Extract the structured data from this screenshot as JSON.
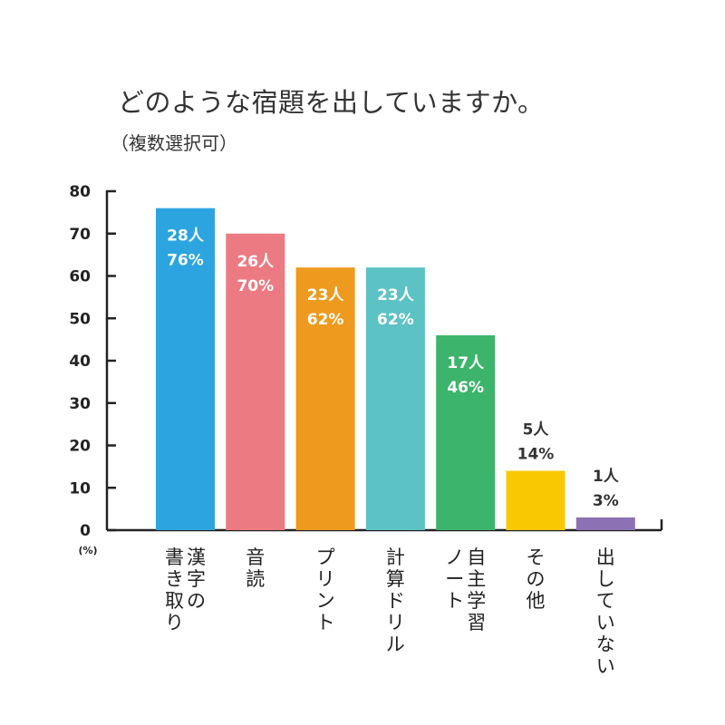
{
  "chart_data": {
    "type": "bar",
    "title": "どのような宿題を出していますか。",
    "subtitle": "（複数選択可）",
    "y_unit": "(%)",
    "ylim": [
      0,
      80
    ],
    "y_ticks": [
      0,
      10,
      20,
      30,
      40,
      50,
      60,
      70,
      80
    ],
    "grid": false,
    "categories": [
      "漢字の書き取り",
      "音読",
      "プリント",
      "計算ドリル",
      "自主学習ノート",
      "その他",
      "出していない"
    ],
    "category_lines": [
      [
        "漢字の",
        "書き取り"
      ],
      [
        "音読"
      ],
      [
        "プリント"
      ],
      [
        "計算ドリル"
      ],
      [
        "自主学習",
        "ノート"
      ],
      [
        "その他"
      ],
      [
        "出していない"
      ]
    ],
    "values": [
      76,
      70,
      62,
      62,
      46,
      14,
      3
    ],
    "counts": [
      "28人",
      "26人",
      "23人",
      "23人",
      "17人",
      "5人",
      "1人"
    ],
    "percent_labels": [
      "76%",
      "70%",
      "62%",
      "62%",
      "46%",
      "14%",
      "3%"
    ],
    "colors": [
      "#2BA4E0",
      "#EC7A83",
      "#ED9A1E",
      "#5CC2C6",
      "#3DB46B",
      "#F9C802",
      "#8C72B5"
    ]
  }
}
